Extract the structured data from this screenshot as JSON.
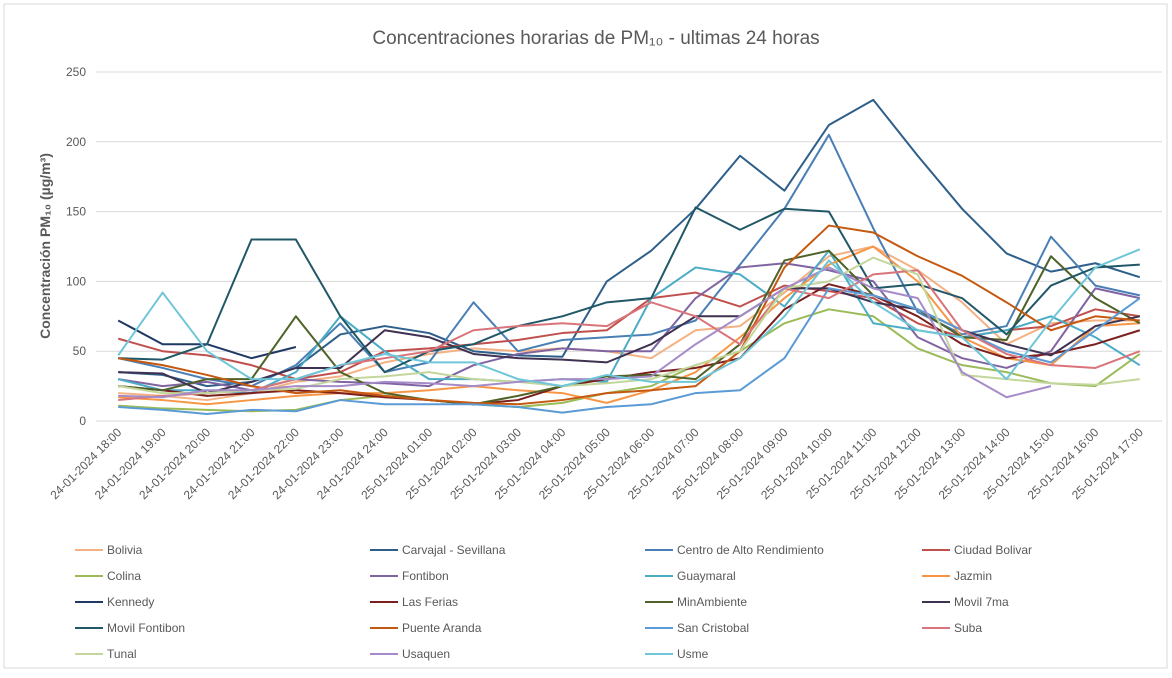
{
  "chart_data": {
    "type": "line",
    "title": "Concentraciones horarias de PM₁₀ - ultimas 24 horas",
    "y_label": "Concentración PM₁₀ (µg/m³)",
    "categories": [
      "24-01-2024 18:00",
      "24-01-2024 19:00",
      "24-01-2024 20:00",
      "24-01-2024 21:00",
      "24-01-2024 22:00",
      "24-01-2024 23:00",
      "24-01-2024 24:00",
      "25-01-2024 01:00",
      "25-01-2024 02:00",
      "25-01-2024 03:00",
      "25-01-2024 04:00",
      "25-01-2024 05:00",
      "25-01-2024 06:00",
      "25-01-2024 07:00",
      "25-01-2024 08:00",
      "25-01-2024 09:00",
      "25-01-2024 10:00",
      "25-01-2024 11:00",
      "25-01-2024 12:00",
      "25-01-2024 13:00",
      "25-01-2024 14:00",
      "25-01-2024 15:00",
      "25-01-2024 16:00",
      "25-01-2024 17:00"
    ],
    "ylim": [
      0,
      250
    ],
    "yticks": [
      0,
      50,
      100,
      150,
      200,
      250
    ],
    "grid": true,
    "series": [
      {
        "name": "Bolivia",
        "color": "#f4b183",
        "values": [
          20,
          18,
          15,
          20,
          28,
          32,
          42,
          48,
          52,
          50,
          52,
          50,
          45,
          65,
          68,
          92,
          118,
          125,
          108,
          85,
          55,
          70,
          72,
          72
        ]
      },
      {
        "name": "Carvajal - Sevillana",
        "color": "#2e5f8a",
        "values": [
          35,
          33,
          25,
          28,
          38,
          62,
          68,
          63,
          50,
          47,
          46,
          100,
          122,
          152,
          190,
          165,
          212,
          230,
          190,
          152,
          120,
          107,
          113,
          103
        ]
      },
      {
        "name": "Centro de Alto Rendimiento",
        "color": "#4a7fb5",
        "values": [
          45,
          38,
          30,
          25,
          40,
          70,
          35,
          42,
          85,
          50,
          58,
          60,
          62,
          72,
          112,
          152,
          205,
          138,
          78,
          62,
          68,
          132,
          97,
          90
        ]
      },
      {
        "name": "Ciudad Bolivar",
        "color": "#c0504d",
        "values": [
          59,
          50,
          47,
          40,
          30,
          35,
          50,
          52,
          55,
          58,
          63,
          65,
          88,
          92,
          82,
          97,
          93,
          88,
          70,
          60,
          65,
          68,
          80,
          75
        ]
      },
      {
        "name": "Colina",
        "color": "#9bbb59",
        "values": [
          11,
          9,
          8,
          7,
          8,
          15,
          18,
          15,
          12,
          10,
          13,
          20,
          25,
          40,
          50,
          70,
          80,
          75,
          52,
          40,
          35,
          27,
          25,
          48
        ]
      },
      {
        "name": "Fontibon",
        "color": "#8064a2",
        "values": [
          30,
          25,
          28,
          22,
          30,
          28,
          27,
          25,
          40,
          48,
          52,
          50,
          50,
          88,
          110,
          113,
          108,
          100,
          60,
          45,
          38,
          50,
          95,
          88
        ]
      },
      {
        "name": "Guaymaral",
        "color": "#4bacc6",
        "values": [
          30,
          22,
          22,
          20,
          35,
          75,
          50,
          30,
          30,
          28,
          30,
          28,
          88,
          110,
          105,
          82,
          122,
          70,
          65,
          60,
          65,
          75,
          60,
          40
        ]
      },
      {
        "name": "Jazmin",
        "color": "#f79646",
        "values": [
          17,
          15,
          12,
          15,
          18,
          20,
          20,
          22,
          25,
          22,
          20,
          13,
          22,
          35,
          60,
          88,
          112,
          125,
          100,
          60,
          45,
          40,
          68,
          70
        ]
      },
      {
        "name": "Kennedy",
        "color": "#1f3864",
        "values": [
          72,
          55,
          55,
          45,
          53,
          null,
          null,
          null,
          null,
          null,
          null,
          null,
          null,
          null,
          null,
          null,
          null,
          null,
          null,
          null,
          null,
          null,
          null,
          null
        ]
      },
      {
        "name": "Las Ferias",
        "color": "#7b1f1f",
        "values": [
          25,
          22,
          18,
          20,
          22,
          20,
          17,
          15,
          12,
          15,
          25,
          30,
          35,
          38,
          45,
          80,
          98,
          90,
          75,
          55,
          45,
          48,
          55,
          65
        ]
      },
      {
        "name": "MinAmbiente",
        "color": "#4f6228",
        "values": [
          25,
          22,
          30,
          30,
          75,
          35,
          20,
          15,
          12,
          18,
          25,
          32,
          33,
          30,
          55,
          115,
          122,
          90,
          80,
          60,
          58,
          118,
          88,
          70
        ]
      },
      {
        "name": "Movil 7ma",
        "color": "#3f3151",
        "values": [
          35,
          34,
          20,
          28,
          38,
          38,
          65,
          60,
          48,
          45,
          44,
          42,
          55,
          75,
          75,
          95,
          95,
          85,
          80,
          65,
          55,
          47,
          68,
          75
        ]
      },
      {
        "name": "Movil Fontibon",
        "color": "#215868",
        "values": [
          45,
          44,
          55,
          130,
          130,
          75,
          35,
          50,
          55,
          68,
          75,
          85,
          88,
          153,
          137,
          152,
          150,
          95,
          98,
          88,
          62,
          97,
          110,
          112
        ]
      },
      {
        "name": "Puente Aranda",
        "color": "#c65911",
        "values": [
          45,
          40,
          33,
          25,
          20,
          22,
          18,
          15,
          13,
          12,
          15,
          20,
          22,
          25,
          50,
          110,
          140,
          135,
          118,
          104,
          85,
          65,
          75,
          72
        ]
      },
      {
        "name": "San Cristobal",
        "color": "#5b9bd5",
        "values": [
          10,
          8,
          5,
          8,
          7,
          15,
          12,
          12,
          12,
          10,
          6,
          10,
          12,
          20,
          22,
          45,
          95,
          90,
          80,
          65,
          50,
          42,
          65,
          88
        ]
      },
      {
        "name": "Suba",
        "color": "#d9747a",
        "values": [
          15,
          18,
          20,
          22,
          30,
          40,
          45,
          50,
          65,
          68,
          70,
          68,
          85,
          75,
          55,
          95,
          88,
          105,
          108,
          65,
          48,
          40,
          38,
          50
        ]
      },
      {
        "name": "Tunal",
        "color": "#c3d69b",
        "values": [
          25,
          20,
          20,
          22,
          23,
          30,
          32,
          35,
          30,
          28,
          25,
          27,
          30,
          40,
          50,
          95,
          100,
          117,
          105,
          33,
          30,
          27,
          26,
          30
        ]
      },
      {
        "name": "Usaquen",
        "color": "#a58cc8",
        "values": [
          18,
          17,
          22,
          22,
          25,
          25,
          28,
          27,
          25,
          28,
          30,
          30,
          32,
          55,
          75,
          95,
          110,
          95,
          88,
          35,
          17,
          25,
          null,
          null
        ]
      },
      {
        "name": "Usme",
        "color": "#6fc6d8",
        "values": [
          47,
          92,
          50,
          30,
          30,
          40,
          48,
          42,
          42,
          30,
          25,
          33,
          28,
          28,
          45,
          75,
          115,
          85,
          65,
          60,
          30,
          72,
          110,
          123
        ]
      }
    ]
  }
}
